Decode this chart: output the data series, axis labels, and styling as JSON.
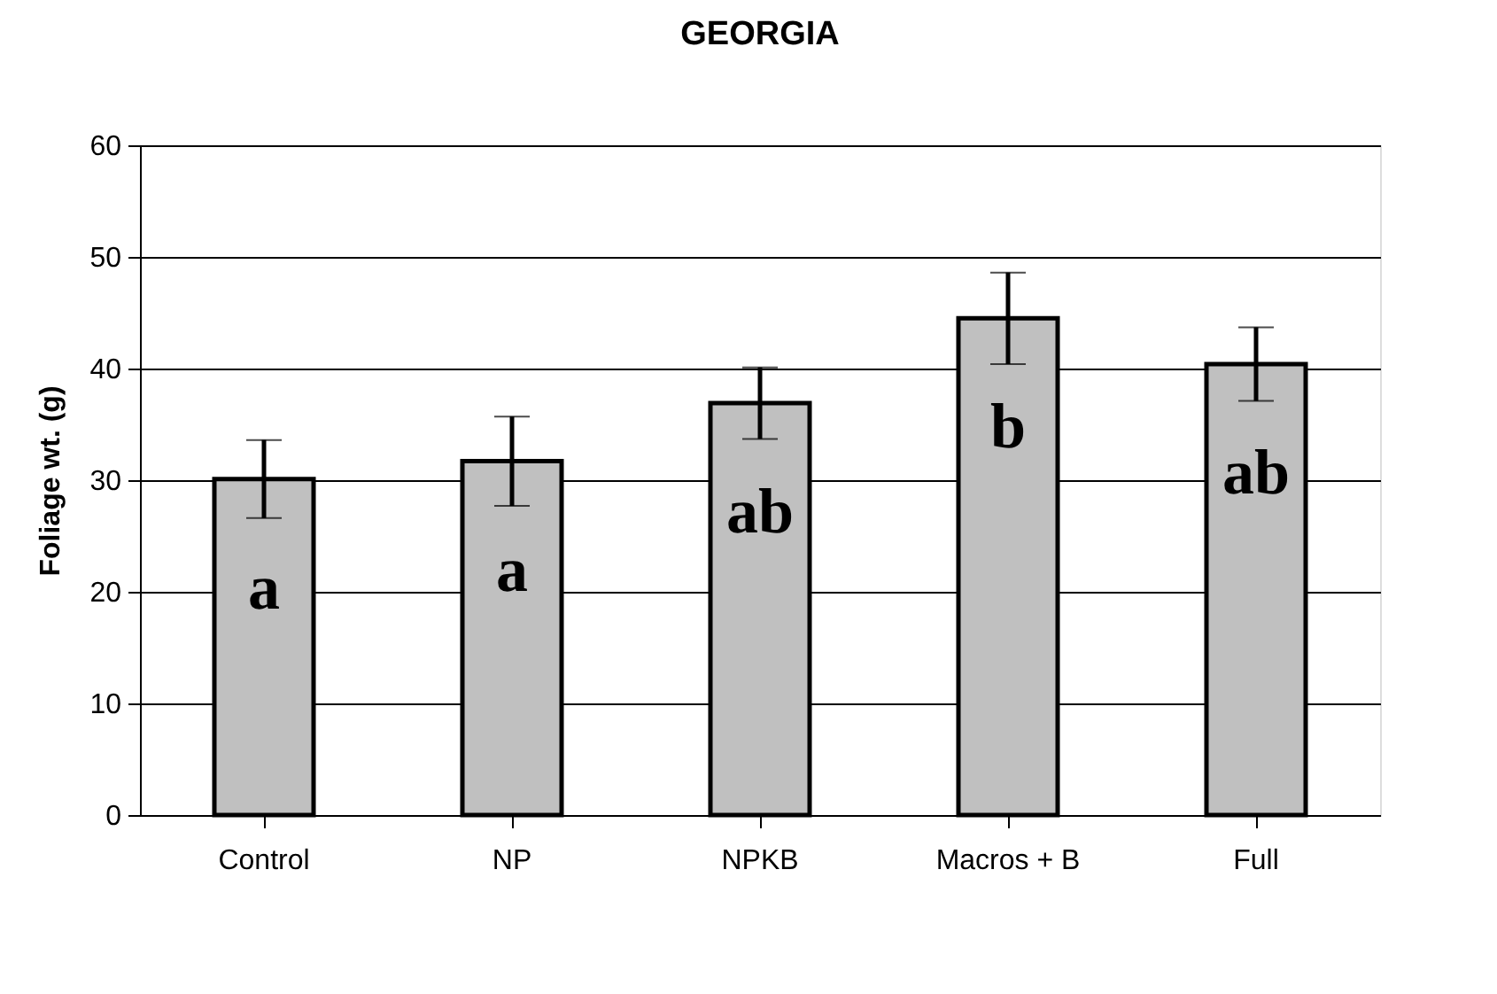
{
  "chart_data": {
    "type": "bar",
    "title": "GEORGIA",
    "ylabel": "Foliage wt. (g)",
    "categories": [
      "Control",
      "NP",
      "NPKB",
      "Macros + B",
      "Full"
    ],
    "values": [
      30.1,
      31.7,
      36.9,
      44.5,
      40.4
    ],
    "errors": [
      3.5,
      4.0,
      3.2,
      4.1,
      3.3
    ],
    "color": "#c0c0c0",
    "ylim": [
      0,
      60
    ],
    "yticks": [
      0,
      10,
      20,
      30,
      40,
      50,
      60
    ],
    "grid": "y",
    "annotations": [
      "a",
      "a",
      "ab",
      "b",
      "ab"
    ]
  }
}
